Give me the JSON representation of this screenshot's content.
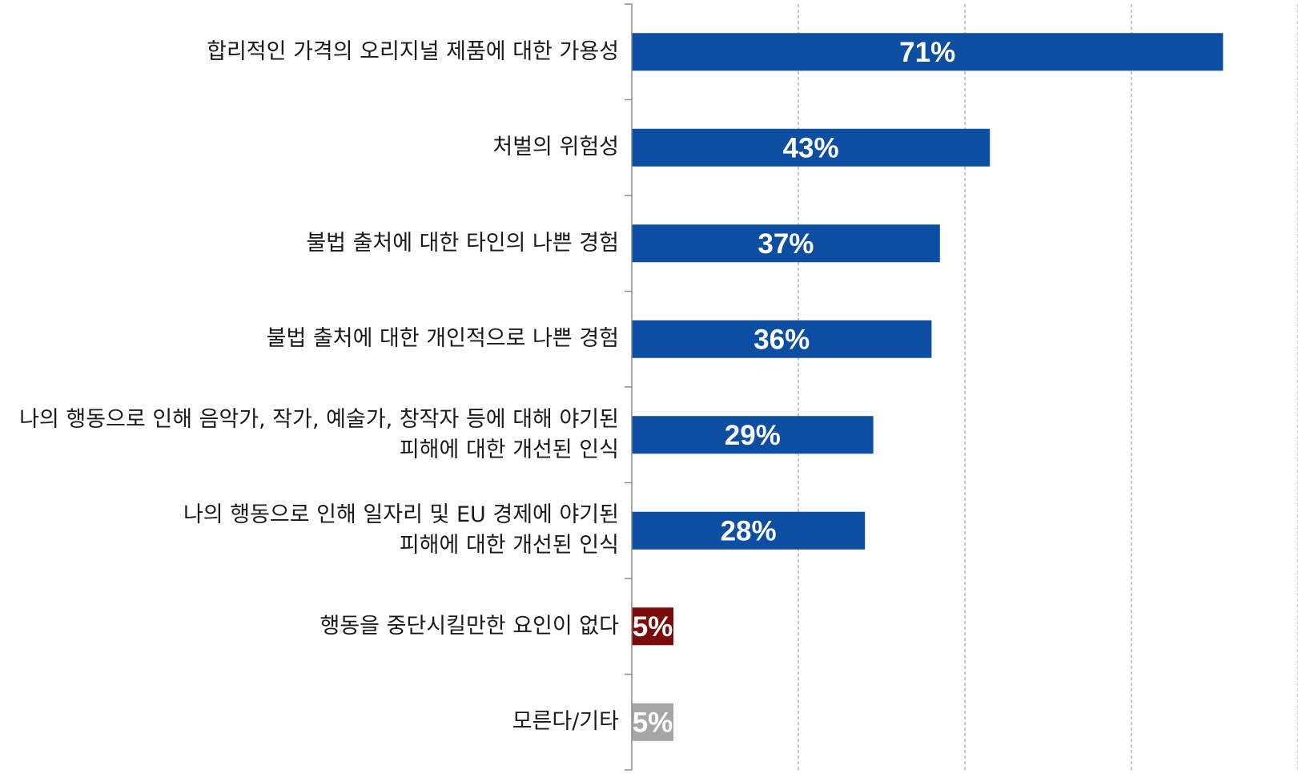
{
  "chart_data": {
    "type": "bar",
    "orientation": "horizontal",
    "categories": [
      [
        "합리적인 가격의 오리지널 제품에 대한 가용성"
      ],
      [
        "처벌의 위험성"
      ],
      [
        "불법 출처에 대한 타인의 나쁜 경험"
      ],
      [
        "불법 출처에 대한 개인적으로 나쁜 경험"
      ],
      [
        "나의 행동으로 인해 음악가, 작가, 예술가, 창작자 등에 대해 야기된",
        "피해에 대한 개선된 인식"
      ],
      [
        "나의 행동으로 인해 일자리 및 EU 경제에 야기된",
        "피해에 대한 개선된 인식"
      ],
      [
        "행동을 중단시킬만한 요인이 없다"
      ],
      [
        "모른다/기타"
      ]
    ],
    "values": [
      71,
      43,
      37,
      36,
      29,
      28,
      5,
      5
    ],
    "value_labels": [
      "71%",
      "43%",
      "37%",
      "36%",
      "29%",
      "28%",
      "5%",
      "5%"
    ],
    "bar_colors": [
      "#0b4ea2",
      "#0b4ea2",
      "#0b4ea2",
      "#0b4ea2",
      "#0b4ea2",
      "#0b4ea2",
      "#7b0a0a",
      "#a6a6a6"
    ],
    "xlim": [
      0,
      80
    ],
    "grid": true,
    "grid_style": "dashed-vertical",
    "legend": "none"
  }
}
